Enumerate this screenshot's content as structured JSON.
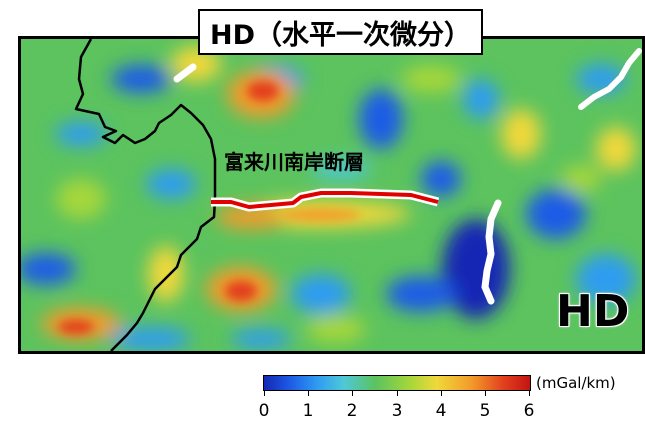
{
  "title": "HD（水平一次微分）",
  "fault_label": "富来川南岸断層",
  "corner_label": "HD",
  "colorbar": {
    "unit": "(mGal/km)",
    "ticks": [
      "0",
      "1",
      "2",
      "3",
      "4",
      "5",
      "6"
    ],
    "range": [
      0,
      6
    ],
    "colors": [
      "#1428b4",
      "#1e5ce6",
      "#2f9cf0",
      "#4ec8d8",
      "#5cc35e",
      "#a6d73a",
      "#f0d83a",
      "#f29b2a",
      "#e2401e",
      "#c41414"
    ]
  },
  "colors": {
    "fault_line": "#e00000",
    "lineament": "#ffffff",
    "coastline": "#000000"
  },
  "map": {
    "blobs": []
  }
}
